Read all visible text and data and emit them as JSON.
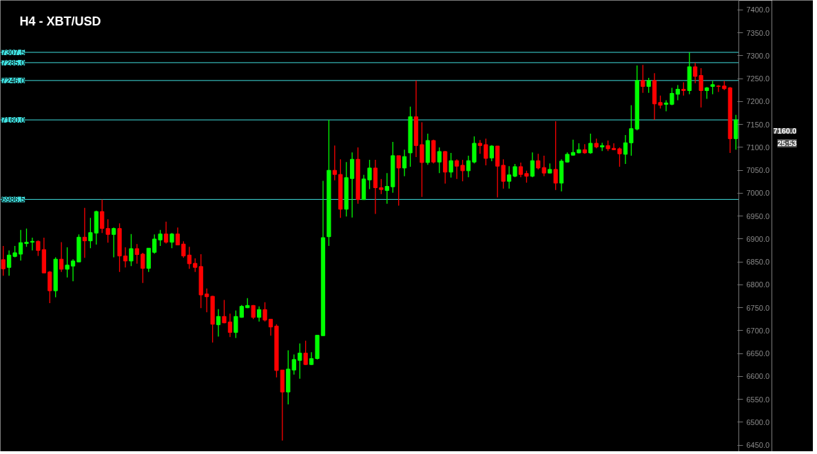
{
  "chart_data": {
    "type": "candlestick",
    "title": "H4 - XBT/USD",
    "categories": [
      null,
      null,
      null,
      null,
      null,
      null,
      null,
      null,
      null,
      null,
      null,
      null,
      null,
      null,
      null,
      null,
      null,
      null,
      null,
      null,
      null,
      null,
      null,
      null,
      null,
      null,
      null,
      null,
      null,
      null,
      null,
      null,
      null,
      null,
      null,
      null,
      null,
      null,
      null,
      null,
      null,
      null,
      null,
      null,
      null,
      null,
      null,
      null,
      null,
      null,
      null,
      null,
      null,
      null,
      null,
      null,
      null,
      null,
      null,
      null,
      null,
      null,
      null,
      null,
      null,
      null,
      null,
      null,
      null,
      null,
      null,
      null,
      null,
      null,
      null,
      null,
      null,
      null,
      null,
      null,
      null,
      null,
      null,
      null,
      null,
      null,
      null,
      null,
      null,
      null,
      null,
      null,
      null,
      null,
      null,
      null,
      null,
      null,
      null,
      null,
      null,
      null,
      null,
      null,
      null,
      null,
      null,
      null,
      null,
      null,
      null,
      null,
      null,
      null,
      null,
      null,
      null,
      null,
      null,
      null,
      null,
      null,
      null,
      null,
      null,
      null,
      null
    ],
    "ohlc": [
      [
        6855,
        6885,
        6820,
        6835
      ],
      [
        6838,
        6875,
        6820,
        6865
      ],
      [
        6862,
        6885,
        6860,
        6870
      ],
      [
        6867,
        6920,
        6853,
        6892
      ],
      [
        6890,
        6923,
        6883,
        6893
      ],
      [
        6893,
        6903,
        6875,
        6895
      ],
      [
        6895,
        6897,
        6863,
        6875
      ],
      [
        6877,
        6903,
        6826,
        6826
      ],
      [
        6828,
        6830,
        6760,
        6787
      ],
      [
        6787,
        6860,
        6773,
        6856
      ],
      [
        6856,
        6893,
        6828,
        6834
      ],
      [
        6834,
        6882,
        6816,
        6843
      ],
      [
        6841,
        6856,
        6808,
        6852
      ],
      [
        6850,
        6910,
        6850,
        6904
      ],
      [
        6904,
        6968,
        6859,
        6896
      ],
      [
        6896,
        6946,
        6880,
        6914
      ],
      [
        6913,
        6962,
        6888,
        6960
      ],
      [
        6960,
        6986.5,
        6913,
        6923
      ],
      [
        6923,
        6943,
        6892,
        6910
      ],
      [
        6910,
        6925,
        6860,
        6923
      ],
      [
        6923,
        6934,
        6828,
        6863
      ],
      [
        6863,
        6882,
        6838,
        6852
      ],
      [
        6852,
        6911,
        6841,
        6879
      ],
      [
        6879,
        6889,
        6846,
        6866
      ],
      [
        6867,
        6870,
        6804,
        6836
      ],
      [
        6836,
        6880,
        6828,
        6880
      ],
      [
        6871,
        6910,
        6868,
        6900
      ],
      [
        6898,
        6920,
        6885,
        6911
      ],
      [
        6911,
        6938,
        6890,
        6893
      ],
      [
        6893,
        6913,
        6880,
        6911
      ],
      [
        6911,
        6925,
        6887,
        6887
      ],
      [
        6889,
        6895,
        6859,
        6863
      ],
      [
        6865,
        6883,
        6835,
        6846
      ],
      [
        6847,
        6858,
        6828,
        6838
      ],
      [
        6840,
        6867,
        6749,
        6778
      ],
      [
        6780,
        6792,
        6740,
        6774
      ],
      [
        6775,
        6776,
        6674,
        6714
      ],
      [
        6713,
        6747,
        6687,
        6731
      ],
      [
        6731,
        6767,
        6716,
        6717
      ],
      [
        6719,
        6737,
        6686,
        6696
      ],
      [
        6696,
        6744,
        6684,
        6731
      ],
      [
        6729,
        6756,
        6728,
        6753
      ],
      [
        6750,
        6771,
        6749,
        6755
      ],
      [
        6755,
        6756,
        6725,
        6729
      ],
      [
        6729,
        6753,
        6720,
        6746
      ],
      [
        6746,
        6762,
        6720,
        6723
      ],
      [
        6725,
        6725,
        6689,
        6708
      ],
      [
        6710,
        6714,
        6598,
        6613
      ],
      [
        6614,
        6614,
        6460,
        6566
      ],
      [
        6566,
        6657,
        6539,
        6616
      ],
      [
        6614,
        6648,
        6604,
        6637
      ],
      [
        6635,
        6672,
        6595,
        6651
      ],
      [
        6651,
        6678,
        6625,
        6626
      ],
      [
        6626,
        6653,
        6625,
        6639
      ],
      [
        6639,
        6690,
        6637,
        6690
      ],
      [
        6689,
        7027,
        6689,
        6903
      ],
      [
        6905,
        7160,
        6885,
        7050
      ],
      [
        7050,
        7104,
        7028,
        7041
      ],
      [
        7041,
        7074,
        6946,
        6965
      ],
      [
        6965,
        7068,
        6949,
        7034
      ],
      [
        7032,
        7089,
        6947,
        7074
      ],
      [
        7074,
        7100,
        6977,
        6986
      ],
      [
        6986,
        7040,
        6986,
        7031
      ],
      [
        7029,
        7073,
        7009,
        7055
      ],
      [
        7055,
        7073,
        6955,
        7012
      ],
      [
        7012,
        7031,
        6998,
        7008
      ],
      [
        7006,
        7044,
        6977,
        7015
      ],
      [
        7014,
        7112,
        7001,
        7082
      ],
      [
        7082,
        7082,
        6973,
        7055
      ],
      [
        7055,
        7095,
        7037,
        7080
      ],
      [
        7088,
        7189,
        7058,
        7167
      ],
      [
        7167,
        7246,
        7079,
        7104
      ],
      [
        7106,
        7155,
        6992,
        7067
      ],
      [
        7067,
        7130,
        7062,
        7115
      ],
      [
        7115,
        7117,
        7065,
        7068
      ],
      [
        7068,
        7100,
        7044,
        7091
      ],
      [
        7091,
        7092,
        7021,
        7046
      ],
      [
        7046,
        7088,
        7034,
        7071
      ],
      [
        7071,
        7074,
        7031,
        7059
      ],
      [
        7061,
        7073,
        7026,
        7049
      ],
      [
        7049,
        7082,
        7035,
        7071
      ],
      [
        7068,
        7124,
        7065,
        7109
      ],
      [
        7109,
        7116,
        7086,
        7104
      ],
      [
        7106,
        7119,
        7061,
        7076
      ],
      [
        7077,
        7105,
        7070,
        7103
      ],
      [
        7103,
        7103,
        6991,
        7059
      ],
      [
        7061,
        7074,
        7010,
        7026
      ],
      [
        7026,
        7059,
        7010,
        7040
      ],
      [
        7037,
        7064,
        7035,
        7058
      ],
      [
        7058,
        7067,
        7035,
        7041
      ],
      [
        7043,
        7049,
        7023,
        7037
      ],
      [
        7037,
        7089,
        7035,
        7071
      ],
      [
        7071,
        7086,
        7052,
        7055
      ],
      [
        7056,
        7082,
        7037,
        7044
      ],
      [
        7044,
        7065,
        7043,
        7052
      ],
      [
        7052,
        7157,
        7007,
        7022
      ],
      [
        7022,
        7074,
        7004,
        7070
      ],
      [
        7068,
        7089,
        7067,
        7085
      ],
      [
        7083,
        7117,
        7082,
        7089
      ],
      [
        7088,
        7109,
        7087,
        7095
      ],
      [
        7095,
        7107,
        7086,
        7088
      ],
      [
        7088,
        7130,
        7086,
        7109
      ],
      [
        7109,
        7119,
        7098,
        7101
      ],
      [
        7101,
        7110,
        7092,
        7104
      ],
      [
        7104,
        7115,
        7092,
        7097
      ],
      [
        7098,
        7109,
        7094,
        7095
      ],
      [
        7097,
        7100,
        7058,
        7086
      ],
      [
        7085,
        7127,
        7064,
        7110
      ],
      [
        7110,
        7192,
        7082,
        7141
      ],
      [
        7140,
        7279,
        7137,
        7246
      ],
      [
        7246,
        7280,
        7219,
        7233
      ],
      [
        7233,
        7252,
        7219,
        7246
      ],
      [
        7246,
        7262,
        7160,
        7195
      ],
      [
        7198,
        7213,
        7185,
        7192
      ],
      [
        7194,
        7203,
        7179,
        7197
      ],
      [
        7194,
        7230,
        7192,
        7218
      ],
      [
        7216,
        7236,
        7203,
        7227
      ],
      [
        7227,
        7242,
        7213,
        7224
      ],
      [
        7224,
        7307.5,
        7216,
        7276
      ],
      [
        7276,
        7285,
        7240,
        7255
      ],
      [
        7257,
        7273,
        7187,
        7224
      ],
      [
        7224,
        7232,
        7206,
        7230
      ],
      [
        7233,
        7245,
        7216,
        7237
      ],
      [
        7234,
        7236,
        7221,
        7233
      ],
      [
        7234,
        7245,
        7225,
        7228
      ],
      [
        7230,
        7232,
        7088,
        7119
      ],
      [
        7119,
        7171,
        7095,
        7160
      ]
    ],
    "colors": [
      "#ff0000",
      "#00ff00",
      "#00ff00",
      "#00ff00",
      "#00ff00",
      "#00ff00",
      "#ff0000",
      "#ff0000",
      "#ff0000",
      "#00ff00",
      "#ff0000",
      "#00ff00",
      "#00ff00",
      "#00ff00",
      "#ff0000",
      "#00ff00",
      "#00ff00",
      "#ff0000",
      "#ff0000",
      "#00ff00",
      "#ff0000",
      "#ff0000",
      "#00ff00",
      "#ff0000",
      "#ff0000",
      "#00ff00",
      "#00ff00",
      "#00ff00",
      "#ff0000",
      "#00ff00",
      "#ff0000",
      "#ff0000",
      "#ff0000",
      "#ff0000",
      "#ff0000",
      "#ff0000",
      "#ff0000",
      "#00ff00",
      "#ff0000",
      "#ff0000",
      "#00ff00",
      "#00ff00",
      "#00ff00",
      "#ff0000",
      "#00ff00",
      "#ff0000",
      "#ff0000",
      "#ff0000",
      "#ff0000",
      "#00ff00",
      "#00ff00",
      "#00ff00",
      "#ff0000",
      "#00ff00",
      "#00ff00",
      "#00ff00",
      "#00ff00",
      "#ff0000",
      "#ff0000",
      "#00ff00",
      "#00ff00",
      "#ff0000",
      "#00ff00",
      "#00ff00",
      "#ff0000",
      "#ff0000",
      "#00ff00",
      "#00ff00",
      "#ff0000",
      "#00ff00",
      "#00ff00",
      "#ff0000",
      "#ff0000",
      "#00ff00",
      "#ff0000",
      "#00ff00",
      "#ff0000",
      "#00ff00",
      "#ff0000",
      "#ff0000",
      "#00ff00",
      "#00ff00",
      "#ff0000",
      "#ff0000",
      "#00ff00",
      "#ff0000",
      "#ff0000",
      "#00ff00",
      "#00ff00",
      "#ff0000",
      "#ff0000",
      "#00ff00",
      "#ff0000",
      "#ff0000",
      "#00ff00",
      "#ff0000",
      "#00ff00",
      "#00ff00",
      "#00ff00",
      "#00ff00",
      "#ff0000",
      "#00ff00",
      "#ff0000",
      "#00ff00",
      "#ff0000",
      "#ff0000",
      "#ff0000",
      "#00ff00",
      "#00ff00",
      "#00ff00",
      "#ff0000",
      "#00ff00",
      "#ff0000",
      "#ff0000",
      "#00ff00",
      "#00ff00",
      "#00ff00",
      "#ff0000",
      "#00ff00",
      "#ff0000",
      "#ff0000",
      "#00ff00",
      "#00ff00",
      "#ff0000",
      "#ff0000",
      "#ff0000",
      "#00ff00"
    ],
    "ylim": [
      6436,
      7421
    ],
    "yticks": [
      {
        "value": 6450,
        "label": "6450.0"
      },
      {
        "value": 6500,
        "label": "6500.0"
      },
      {
        "value": 6550,
        "label": "6550.0"
      },
      {
        "value": 6600,
        "label": "6600.0"
      },
      {
        "value": 6650,
        "label": "6650.0"
      },
      {
        "value": 6700,
        "label": "6700.0"
      },
      {
        "value": 6750,
        "label": "6750.0"
      },
      {
        "value": 6800,
        "label": "6800.0"
      },
      {
        "value": 6850,
        "label": "6850.0"
      },
      {
        "value": 6900,
        "label": "6900.0"
      },
      {
        "value": 6950,
        "label": "6950.0"
      },
      {
        "value": 7000,
        "label": "7000.0"
      },
      {
        "value": 7050,
        "label": "7050.0"
      },
      {
        "value": 7100,
        "label": "7100.0"
      },
      {
        "value": 7150,
        "label": "7150.0"
      },
      {
        "value": 7200,
        "label": "7200.0"
      },
      {
        "value": 7250,
        "label": "7250.0"
      },
      {
        "value": 7300,
        "label": "7300.0"
      },
      {
        "value": 7350,
        "label": "7350.0"
      },
      {
        "value": 7400,
        "label": "7400.0"
      }
    ],
    "ref_lines": [
      {
        "axis": "y",
        "value": 7307.5,
        "label": "7307.5",
        "color": "#40e0e0"
      },
      {
        "axis": "y",
        "value": 7285.0,
        "label": "7285.0",
        "color": "#40e0e0"
      },
      {
        "axis": "y",
        "value": 7246.0,
        "label": "7246.0",
        "color": "#40e0e0"
      },
      {
        "axis": "y",
        "value": 7160.0,
        "label": "7160.0",
        "color": "#40e0e0"
      },
      {
        "axis": "y",
        "value": 6986.5,
        "label": "6986.5",
        "color": "#40e0e0"
      }
    ],
    "annotations": [
      "7160.0",
      "25:53"
    ]
  }
}
